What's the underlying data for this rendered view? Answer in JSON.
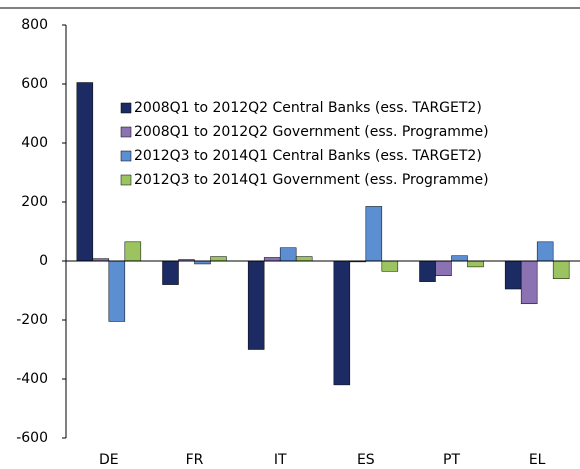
{
  "chart_data": {
    "type": "bar",
    "categories": [
      "DE",
      "FR",
      "IT",
      "ES",
      "PT",
      "EL"
    ],
    "series": [
      {
        "name": "2008Q1 to 2012Q2 Central Banks (ess. TARGET2)",
        "color": "#1c2b64",
        "values": [
          605,
          -80,
          -300,
          -420,
          -70,
          -95
        ]
      },
      {
        "name": "2008Q1 to 2012Q2 Government (ess. Programme)",
        "color": "#8b72b3",
        "values": [
          8,
          5,
          12,
          -3,
          -50,
          -145
        ]
      },
      {
        "name": "2012Q3 to 2014Q1 Central Banks (ess. TARGET2)",
        "color": "#5b8fd2",
        "values": [
          -205,
          -10,
          45,
          185,
          18,
          65
        ]
      },
      {
        "name": "2012Q3 to 2014Q1 Government (ess. Programme)",
        "color": "#9bc35f",
        "values": [
          65,
          15,
          15,
          -35,
          -20,
          -60
        ]
      }
    ],
    "ylim": [
      -600,
      800
    ],
    "yticks": [
      -600,
      -400,
      -200,
      0,
      200,
      400,
      600,
      800
    ],
    "grid": false,
    "legend": "top-center"
  }
}
